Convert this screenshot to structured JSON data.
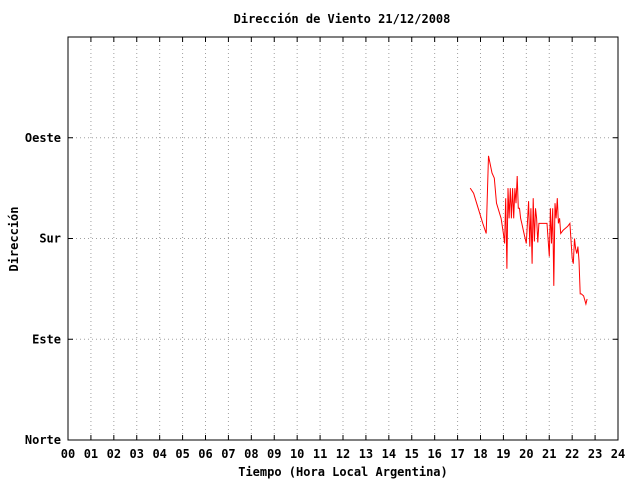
{
  "chart_data": {
    "type": "line",
    "title": "Dirección de Viento 21/12/2008",
    "xlabel": "Tiempo (Hora Local Argentina)",
    "ylabel": "Dirección",
    "xlim": [
      0,
      24
    ],
    "ylim": [
      0,
      4
    ],
    "x_ticks": [
      "00",
      "01",
      "02",
      "03",
      "04",
      "05",
      "06",
      "07",
      "08",
      "09",
      "10",
      "11",
      "12",
      "13",
      "14",
      "15",
      "16",
      "17",
      "18",
      "19",
      "20",
      "21",
      "22",
      "23",
      "24"
    ],
    "y_ticks": [
      {
        "value": 0,
        "label": "Norte"
      },
      {
        "value": 1,
        "label": "Este"
      },
      {
        "value": 2,
        "label": "Sur"
      },
      {
        "value": 3,
        "label": "Oeste"
      }
    ],
    "grid": true,
    "series": [
      {
        "color": "#ff0000",
        "x": [
          17.55,
          17.7,
          17.9,
          18.1,
          18.25,
          18.35,
          18.5,
          18.6,
          18.7,
          18.9,
          19.0,
          19.05,
          19.1,
          19.15,
          19.2,
          19.25,
          19.3,
          19.35,
          19.4,
          19.45,
          19.5,
          19.55,
          19.6,
          19.65,
          19.7,
          19.75,
          19.8,
          19.9,
          20.0,
          20.1,
          20.15,
          20.2,
          20.25,
          20.3,
          20.35,
          20.4,
          20.45,
          20.5,
          20.55,
          20.6,
          20.7,
          20.8,
          20.9,
          21.0,
          21.05,
          21.1,
          21.15,
          21.2,
          21.25,
          21.3,
          21.35,
          21.4,
          21.45,
          21.5,
          21.6,
          21.7,
          21.8,
          21.9,
          22.0,
          22.05,
          22.1,
          22.15,
          22.2,
          22.25,
          22.3,
          22.35,
          22.4,
          22.5,
          22.6,
          22.65
        ],
        "y": [
          2.5,
          2.45,
          2.3,
          2.15,
          2.05,
          2.82,
          2.65,
          2.6,
          2.35,
          2.2,
          2.05,
          1.95,
          2.4,
          1.7,
          2.5,
          2.2,
          2.5,
          2.2,
          2.5,
          2.2,
          2.5,
          2.35,
          2.62,
          2.3,
          2.3,
          2.2,
          2.15,
          2.05,
          1.95,
          2.37,
          1.92,
          2.3,
          1.75,
          2.4,
          1.97,
          2.3,
          2.2,
          1.96,
          2.15,
          2.15,
          2.15,
          2.15,
          2.15,
          1.82,
          2.3,
          1.95,
          2.3,
          1.53,
          2.35,
          2.2,
          2.4,
          2.15,
          2.2,
          2.05,
          2.08,
          2.1,
          2.12,
          2.15,
          1.8,
          1.75,
          2.0,
          1.9,
          1.85,
          1.92,
          1.78,
          1.45,
          1.45,
          1.43,
          1.35,
          1.4
        ]
      }
    ]
  }
}
